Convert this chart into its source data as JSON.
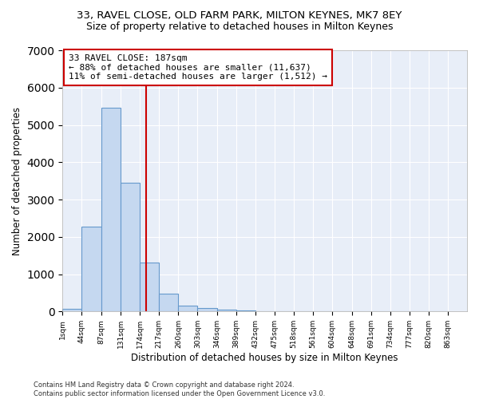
{
  "title1": "33, RAVEL CLOSE, OLD FARM PARK, MILTON KEYNES, MK7 8EY",
  "title2": "Size of property relative to detached houses in Milton Keynes",
  "xlabel": "Distribution of detached houses by size in Milton Keynes",
  "ylabel": "Number of detached properties",
  "bin_labels": [
    "1sqm",
    "44sqm",
    "87sqm",
    "131sqm",
    "174sqm",
    "217sqm",
    "260sqm",
    "303sqm",
    "346sqm",
    "389sqm",
    "432sqm",
    "475sqm",
    "518sqm",
    "561sqm",
    "604sqm",
    "648sqm",
    "691sqm",
    "734sqm",
    "777sqm",
    "820sqm",
    "863sqm"
  ],
  "bar_values": [
    80,
    2280,
    5470,
    3440,
    1320,
    480,
    165,
    90,
    55,
    30,
    10,
    5,
    3,
    2,
    1,
    1,
    0,
    0,
    0,
    0
  ],
  "bar_color": "#c5d8f0",
  "bar_edge_color": "#6699cc",
  "vline_color": "#cc0000",
  "annotation_line1": "33 RAVEL CLOSE: 187sqm",
  "annotation_line2": "← 88% of detached houses are smaller (11,637)",
  "annotation_line3": "11% of semi-detached houses are larger (1,512) →",
  "annotation_box_color": "#ffffff",
  "annotation_box_edge": "#cc0000",
  "ylim": [
    0,
    7000
  ],
  "yticks": [
    0,
    1000,
    2000,
    3000,
    4000,
    5000,
    6000,
    7000
  ],
  "background_color": "#e8eef8",
  "footer_text": "Contains HM Land Registry data © Crown copyright and database right 2024.\nContains public sector information licensed under the Open Government Licence v3.0.",
  "title1_fontsize": 9.5,
  "title2_fontsize": 9,
  "xlabel_fontsize": 8.5,
  "ylabel_fontsize": 8.5,
  "annotation_fontsize": 8
}
